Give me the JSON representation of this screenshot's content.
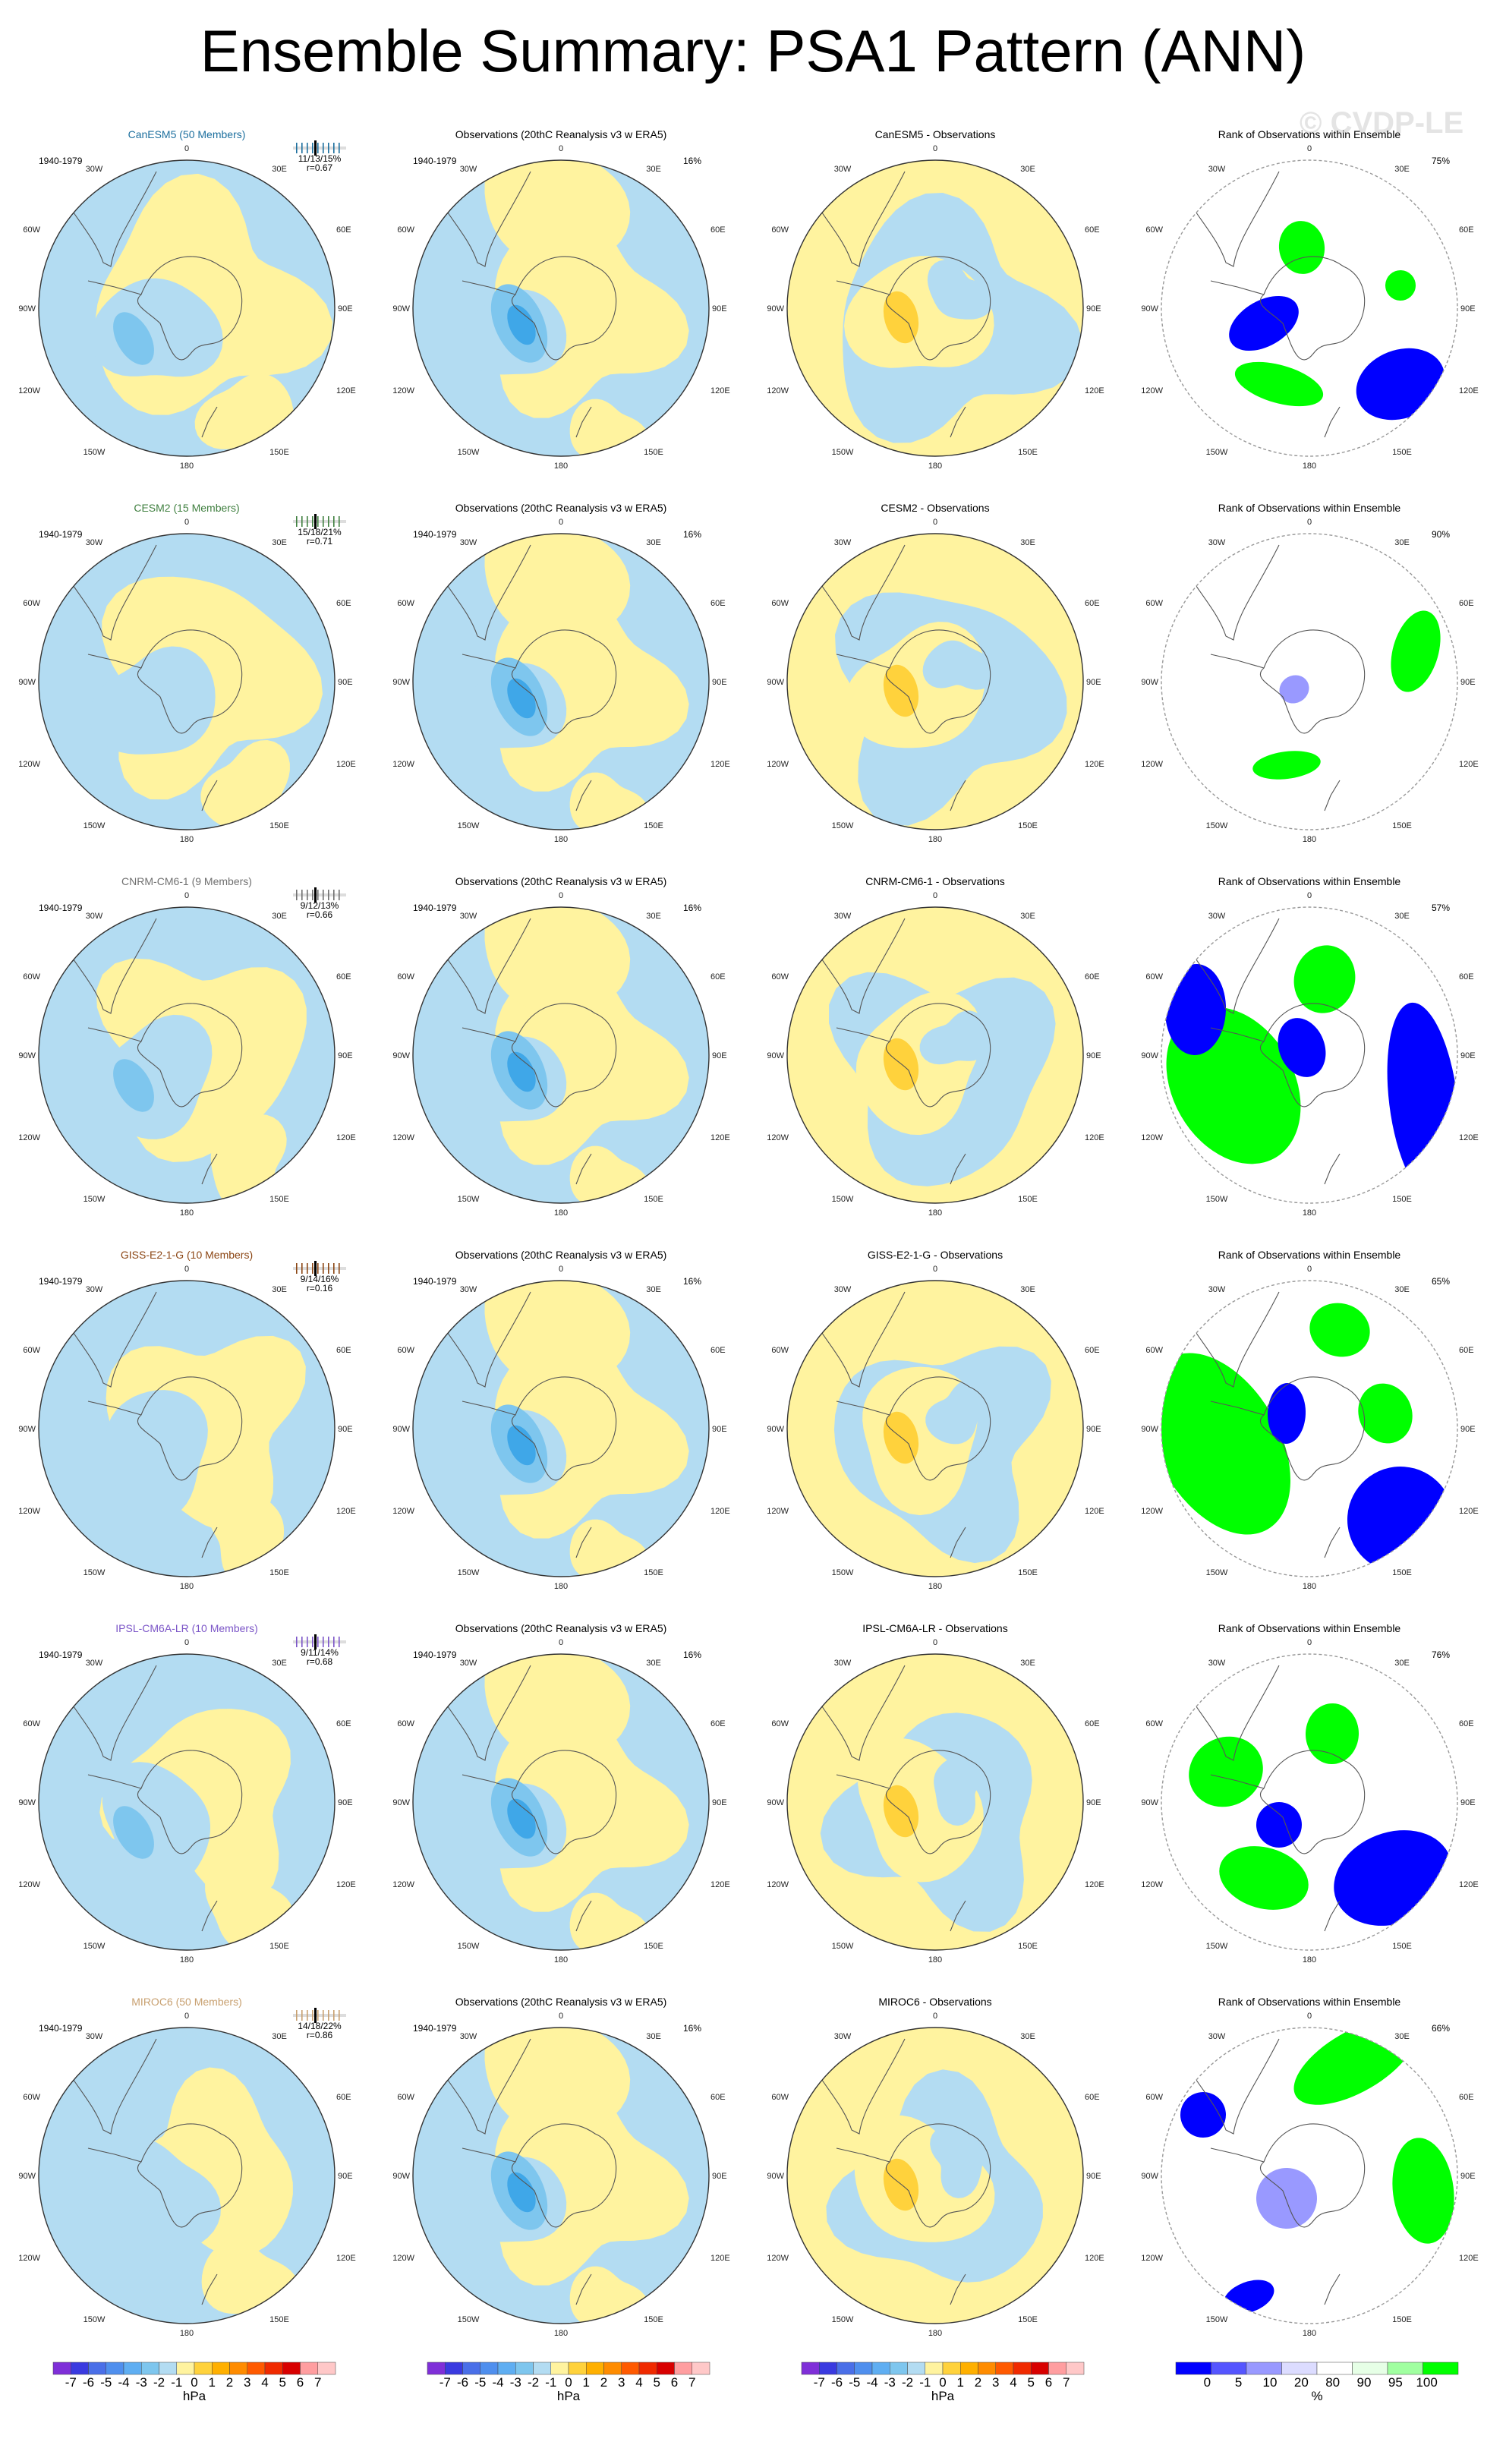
{
  "title": "Ensemble Summary: PSA1 Pattern (ANN)",
  "watermark": "© CVDP-LE",
  "colors": {
    "land_outline": "#555555",
    "ocean_blue_light": "#b3dcf2",
    "blue_mid": "#7ec6ee",
    "blue_dark": "#3fa7e8",
    "yellow_light": "#fff39f",
    "yellow_mid": "#ffd23c",
    "rank_white": "#ffffff",
    "rank_green": "#00ff00",
    "rank_blue": "#0000ff",
    "rank_lightblue": "#9999ff"
  },
  "rows": [
    {
      "model_label": "CanESM5 (50 Members)",
      "model_label_color": "#1c6f9e",
      "period": "1940-1979",
      "stats_line1": "11/13/15%",
      "stats_line2": "r=0.67",
      "obs_title": "Observations (20thC Reanalysis v3 w ERA5)",
      "obs_period": "1940-1979",
      "obs_pct": "16%",
      "diff_title": "CanESM5 - Observations",
      "rank_title": "Rank of Observations within Ensemble",
      "rank_pct": "75%"
    },
    {
      "model_label": "CESM2 (15 Members)",
      "model_label_color": "#3f7f3f",
      "period": "1940-1979",
      "stats_line1": "15/18/21%",
      "stats_line2": "r=0.71",
      "obs_title": "Observations (20thC Reanalysis v3 w ERA5)",
      "obs_period": "1940-1979",
      "obs_pct": "16%",
      "diff_title": "CESM2 - Observations",
      "rank_title": "Rank of Observations within Ensemble",
      "rank_pct": "90%"
    },
    {
      "model_label": "CNRM-CM6-1 (9 Members)",
      "model_label_color": "#707070",
      "period": "1940-1979",
      "stats_line1": "9/12/13%",
      "stats_line2": "r=0.66",
      "obs_title": "Observations (20thC Reanalysis v3 w ERA5)",
      "obs_period": "1940-1979",
      "obs_pct": "16%",
      "diff_title": "CNRM-CM6-1 - Observations",
      "rank_title": "Rank of Observations within Ensemble",
      "rank_pct": "57%"
    },
    {
      "model_label": "GISS-E2-1-G (10 Members)",
      "model_label_color": "#8b4513",
      "period": "1940-1979",
      "stats_line1": "9/14/16%",
      "stats_line2": "r=0.16",
      "obs_title": "Observations (20thC Reanalysis v3 w ERA5)",
      "obs_period": "1940-1979",
      "obs_pct": "16%",
      "diff_title": "GISS-E2-1-G - Observations",
      "rank_title": "Rank of Observations within Ensemble",
      "rank_pct": "65%"
    },
    {
      "model_label": "IPSL-CM6A-LR (10 Members)",
      "model_label_color": "#7b55c7",
      "period": "1940-1979",
      "stats_line1": "9/11/14%",
      "stats_line2": "r=0.68",
      "obs_title": "Observations (20thC Reanalysis v3 w ERA5)",
      "obs_period": "1940-1979",
      "obs_pct": "16%",
      "diff_title": "IPSL-CM6A-LR - Observations",
      "rank_title": "Rank of Observations within Ensemble",
      "rank_pct": "76%"
    },
    {
      "model_label": "MIROC6 (50 Members)",
      "model_label_color": "#c8a070",
      "period": "1940-1979",
      "stats_line1": "14/18/22%",
      "stats_line2": "r=0.86",
      "obs_title": "Observations (20thC Reanalysis v3 w ERA5)",
      "obs_period": "1940-1979",
      "obs_pct": "16%",
      "diff_title": "MIROC6 - Observations",
      "rank_title": "Rank of Observations within Ensemble",
      "rank_pct": "66%"
    }
  ],
  "map_labels": {
    "top": "0",
    "top_left": "30W",
    "top_right": "30E",
    "upper_left": "60W",
    "upper_right": "60E",
    "left": "90W",
    "right": "90E",
    "lower_left": "120W",
    "lower_right": "120E",
    "bottom_left": "150W",
    "bottom_right": "150E",
    "bottom": "180"
  },
  "chart_data": [
    {
      "type": "heatmap",
      "title": "Ensemble Summary: PSA1 Pattern (ANN)",
      "panels_per_row": [
        "model ensemble mean pattern",
        "observations pattern",
        "model minus observations",
        "rank of observations within ensemble"
      ],
      "colorbar_hpa": {
        "ticks": [
          "-7",
          "-6",
          "-5",
          "-4",
          "-3",
          "-2",
          "-1",
          "0",
          "1",
          "2",
          "3",
          "4",
          "5",
          "6",
          "7"
        ],
        "unit": "hPa",
        "colors": [
          "#7f2fd8",
          "#3a3ae0",
          "#4a6fe8",
          "#4f8fee",
          "#5faef2",
          "#7ec6ee",
          "#b3dcf2",
          "#fff39f",
          "#ffd23c",
          "#ffb000",
          "#ff8c00",
          "#ff5a00",
          "#f02a00",
          "#d80000",
          "#ff9ea0",
          "#ffc8c8"
        ]
      },
      "colorbar_rank": {
        "ticks": [
          "0",
          "5",
          "10",
          "20",
          "80",
          "90",
          "95",
          "100"
        ],
        "unit": "%",
        "colors": [
          "#0000ff",
          "#5555ff",
          "#9999ff",
          "#dcdcff",
          "#ffffff",
          "#e6ffe6",
          "#a0ffa0",
          "#00ff00"
        ]
      }
    }
  ]
}
